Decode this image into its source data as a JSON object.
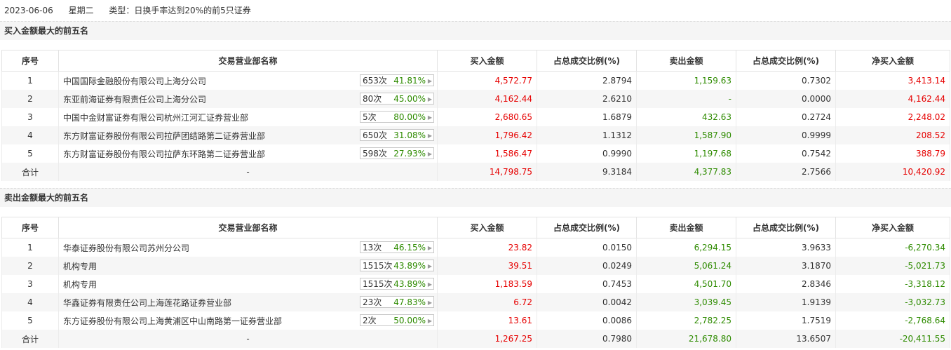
{
  "header": {
    "date": "2023-06-06",
    "weekday": "星期二",
    "type": "类型：日换手率达到20%的前5只证券"
  },
  "columns": [
    "序号",
    "交易营业部名称",
    "买入金额",
    "占总成交比例(%)",
    "卖出金额",
    "占总成交比例(%)",
    "净买入金额"
  ],
  "buy_section": {
    "title": "买入金额最大的前五名",
    "rows": [
      {
        "idx": "1",
        "name": "中国国际金融股份有限公司上海分公司",
        "count": "653次",
        "pct": "41.81%",
        "buy": "4,572.77",
        "buy_ratio": "2.8794",
        "sell": "1,159.63",
        "sell_ratio": "0.7302",
        "net": "3,413.14"
      },
      {
        "idx": "2",
        "name": "东亚前海证券有限责任公司上海分公司",
        "count": "80次",
        "pct": "45.00%",
        "buy": "4,162.44",
        "buy_ratio": "2.6210",
        "sell": "-",
        "sell_ratio": "0.0000",
        "net": "4,162.44"
      },
      {
        "idx": "3",
        "name": "中国中金财富证券有限公司杭州江河汇证券营业部",
        "count": "5次",
        "pct": "80.00%",
        "buy": "2,680.65",
        "buy_ratio": "1.6879",
        "sell": "432.63",
        "sell_ratio": "0.2724",
        "net": "2,248.02"
      },
      {
        "idx": "4",
        "name": "东方财富证券股份有限公司拉萨团结路第二证券营业部",
        "count": "650次",
        "pct": "31.08%",
        "buy": "1,796.42",
        "buy_ratio": "1.1312",
        "sell": "1,587.90",
        "sell_ratio": "0.9999",
        "net": "208.52"
      },
      {
        "idx": "5",
        "name": "东方财富证券股份有限公司拉萨东环路第二证券营业部",
        "count": "598次",
        "pct": "27.93%",
        "buy": "1,586.47",
        "buy_ratio": "0.9990",
        "sell": "1,197.68",
        "sell_ratio": "0.7542",
        "net": "388.79"
      }
    ],
    "total": {
      "label": "合计",
      "name": "-",
      "buy": "14,798.75",
      "buy_ratio": "9.3184",
      "sell": "4,377.83",
      "sell_ratio": "2.7566",
      "net": "10,420.92"
    }
  },
  "sell_section": {
    "title": "卖出金额最大的前五名",
    "rows": [
      {
        "idx": "1",
        "name": "华泰证券股份有限公司苏州分公司",
        "count": "13次",
        "pct": "46.15%",
        "buy": "23.82",
        "buy_ratio": "0.0150",
        "sell": "6,294.15",
        "sell_ratio": "3.9633",
        "net": "-6,270.34"
      },
      {
        "idx": "2",
        "name": "机构专用",
        "count": "1515次",
        "pct": "43.89%",
        "buy": "39.51",
        "buy_ratio": "0.0249",
        "sell": "5,061.24",
        "sell_ratio": "3.1870",
        "net": "-5,021.73"
      },
      {
        "idx": "3",
        "name": "机构专用",
        "count": "1515次",
        "pct": "43.89%",
        "buy": "1,183.59",
        "buy_ratio": "0.7453",
        "sell": "4,501.70",
        "sell_ratio": "2.8346",
        "net": "-3,318.12"
      },
      {
        "idx": "4",
        "name": "华鑫证券有限责任公司上海莲花路证券营业部",
        "count": "23次",
        "pct": "47.83%",
        "buy": "6.72",
        "buy_ratio": "0.0042",
        "sell": "3,039.45",
        "sell_ratio": "1.9139",
        "net": "-3,032.73"
      },
      {
        "idx": "5",
        "name": "东方证券股份有限公司上海黄浦区中山南路第一证券营业部",
        "count": "2次",
        "pct": "50.00%",
        "buy": "13.61",
        "buy_ratio": "0.0086",
        "sell": "2,782.25",
        "sell_ratio": "1.7519",
        "net": "-2,768.64"
      }
    ],
    "total": {
      "label": "合计",
      "name": "-",
      "buy": "1,267.25",
      "buy_ratio": "0.7980",
      "sell": "21,678.80",
      "sell_ratio": "13.6507",
      "net": "-20,411.55"
    }
  },
  "colors": {
    "positive": "#e60000",
    "negative": "#2e8b00",
    "row_alt": "#f6f6f6"
  },
  "icons": {
    "badge_arrow": "chevron-right-icon"
  }
}
